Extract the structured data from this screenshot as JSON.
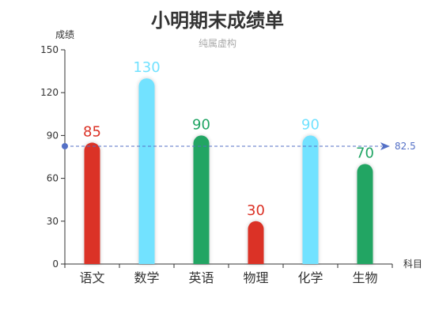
{
  "chart_data": {
    "type": "bar",
    "title": "小明期末成绩单",
    "subtitle": "纯属虚构",
    "xlabel": "科目",
    "ylabel": "成绩",
    "categories": [
      "语文",
      "数学",
      "英语",
      "物理",
      "化学",
      "生物"
    ],
    "values": [
      85,
      130,
      90,
      30,
      90,
      70
    ],
    "bar_colors": [
      "#db3125",
      "#72e2ff",
      "#20a564",
      "#db3125",
      "#72e2ff",
      "#20a564"
    ],
    "ylim": [
      0,
      150
    ],
    "yticks": [
      0,
      30,
      60,
      90,
      120,
      150
    ],
    "ytick_labels": [
      "0",
      "30",
      "60",
      "90",
      "120",
      "150"
    ],
    "grid": false,
    "mark_line": {
      "value": 82.5,
      "label": "82.5",
      "color": "#5470c6"
    }
  }
}
